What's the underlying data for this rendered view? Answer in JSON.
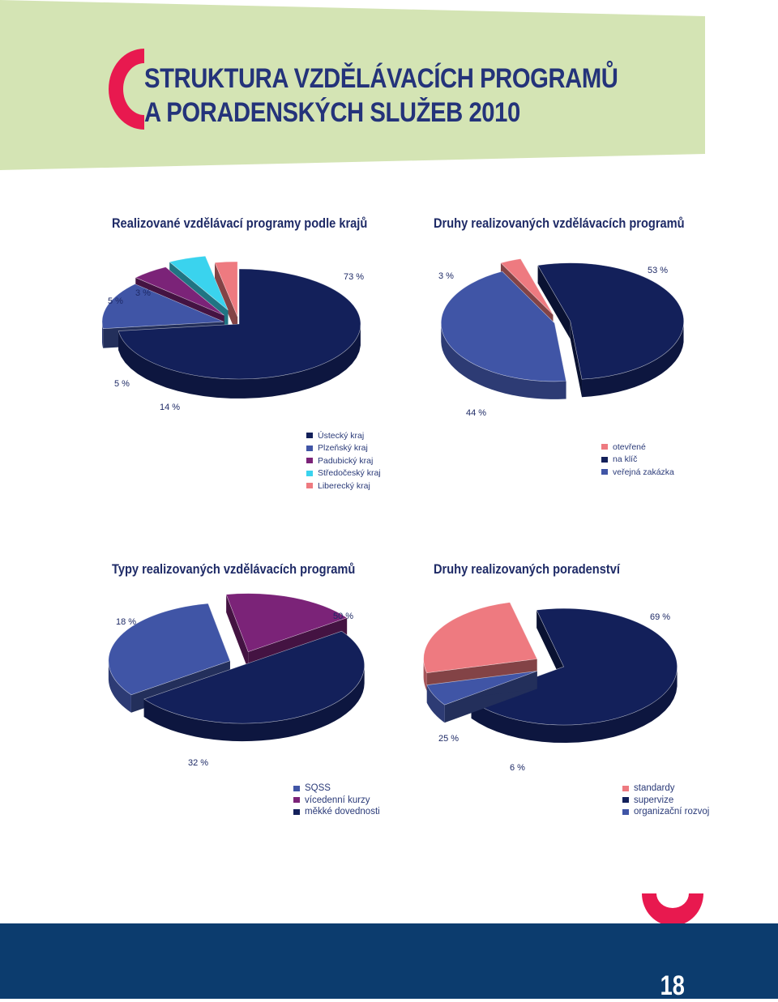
{
  "header": {
    "title_line1": "STRUKTURA VZDĚLÁVACÍCH PROGRAMŮ",
    "title_line2": "A PORADENSKÝCH SLUŽEB 2010",
    "accent_color": "#e8194f",
    "band_color": "#d4e4b4"
  },
  "chart_data": [
    {
      "type": "pie",
      "title": "Realizované vzdělávací programy podle krajů",
      "categories": [
        "Ústecký kraj",
        "Plzeňský kraj",
        "Padubický kraj",
        "Středočeský kraj",
        "Liberecký kraj"
      ],
      "values": [
        73,
        14,
        5,
        5,
        3
      ],
      "labels": [
        "73 %",
        "14 %",
        "5 %",
        "5 %",
        "3 %"
      ],
      "colors": [
        "#13205a",
        "#4055a6",
        "#7b2378",
        "#3ad3ee",
        "#ee7a80"
      ],
      "legend_position": "bottom"
    },
    {
      "type": "pie",
      "title": "Druhy realizovaných vzdělávacích programů",
      "categories": [
        "otevřené",
        "na klíč",
        "veřejná zakázka"
      ],
      "values": [
        3,
        53,
        44
      ],
      "labels": [
        "3 %",
        "53 %",
        "44 %"
      ],
      "colors": [
        "#ee7a80",
        "#13205a",
        "#4055a6"
      ],
      "legend_position": "bottom"
    },
    {
      "type": "pie",
      "title": "Typy realizovaných vzdělávacích programů",
      "categories": [
        "SQSS",
        "vícedenní kurzy",
        "měkké dovednosti"
      ],
      "values": [
        32,
        18,
        50
      ],
      "labels": [
        "32 %",
        "18 %",
        "50 %"
      ],
      "colors": [
        "#4055a6",
        "#7b2378",
        "#13205a"
      ],
      "legend_position": "bottom"
    },
    {
      "type": "pie",
      "title": "Druhy realizovaných poradenství",
      "categories": [
        "standardy",
        "supervize",
        "organizační rozvoj"
      ],
      "values": [
        25,
        69,
        6
      ],
      "labels": [
        "25 %",
        "69 %",
        "6 %"
      ],
      "colors": [
        "#ee7a80",
        "#13205a",
        "#4055a6"
      ],
      "legend_position": "bottom"
    }
  ],
  "footer": {
    "page_number": "18",
    "band_color": "#0c3c6e"
  }
}
